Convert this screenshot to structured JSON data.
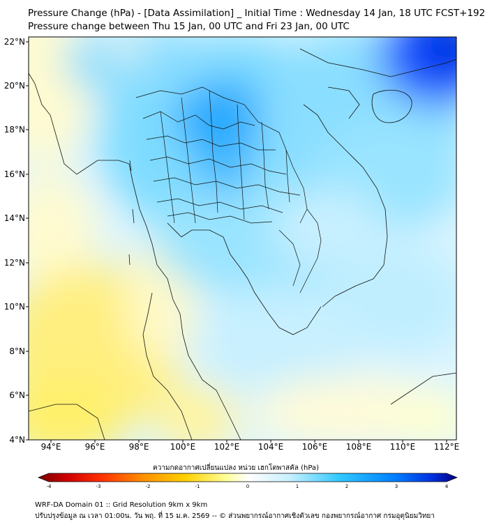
{
  "title_line1": "Pressure Change (hPa) - [Data Assimilation] _ Initial Time : Wednesday 14 Jan, 18 UTC FCST+192",
  "title_line2": "Pressure change between Thu 15 Jan, 00 UTC and Fri 23 Jan, 00 UTC",
  "lat_labels": [
    "22°N",
    "20°N",
    "18°N",
    "16°N",
    "14°N",
    "12°N",
    "10°N",
    "8°N",
    "6°N",
    "4°N"
  ],
  "lon_labels": [
    "94°E",
    "96°E",
    "98°E",
    "100°E",
    "102°E",
    "104°E",
    "106°E",
    "108°E",
    "110°E",
    "112°E"
  ],
  "colorbar": {
    "label": "ความกดอากาศเปลี่ยนแปลง หน่วย เฮกโตพาสคัล (hPa)",
    "ticks": [
      "-4",
      "-3",
      "-2",
      "-1",
      "0",
      "1",
      "2",
      "3",
      "4"
    ],
    "colors": [
      "#7a0000",
      "#ff1a00",
      "#ff8c00",
      "#ffd000",
      "#ffff9a",
      "#ffffff",
      "#c8f0ff",
      "#00c0ff",
      "#0050ff",
      "#000080"
    ]
  },
  "footer_line1": "WRF-DA Domain 01 :: Grid Resolution 9km x 9km",
  "footer_line2": "ปรับปรุงข้อมูล ณ เวลา 01:00น. วัน พฤ. ที่ 15 ม.ค. 2569 -- © ส่วนพยากรณ์อากาศเชิงตัวเลข กองพยากรณ์อากาศ กรมอุตุนิยมวิทยา"
}
